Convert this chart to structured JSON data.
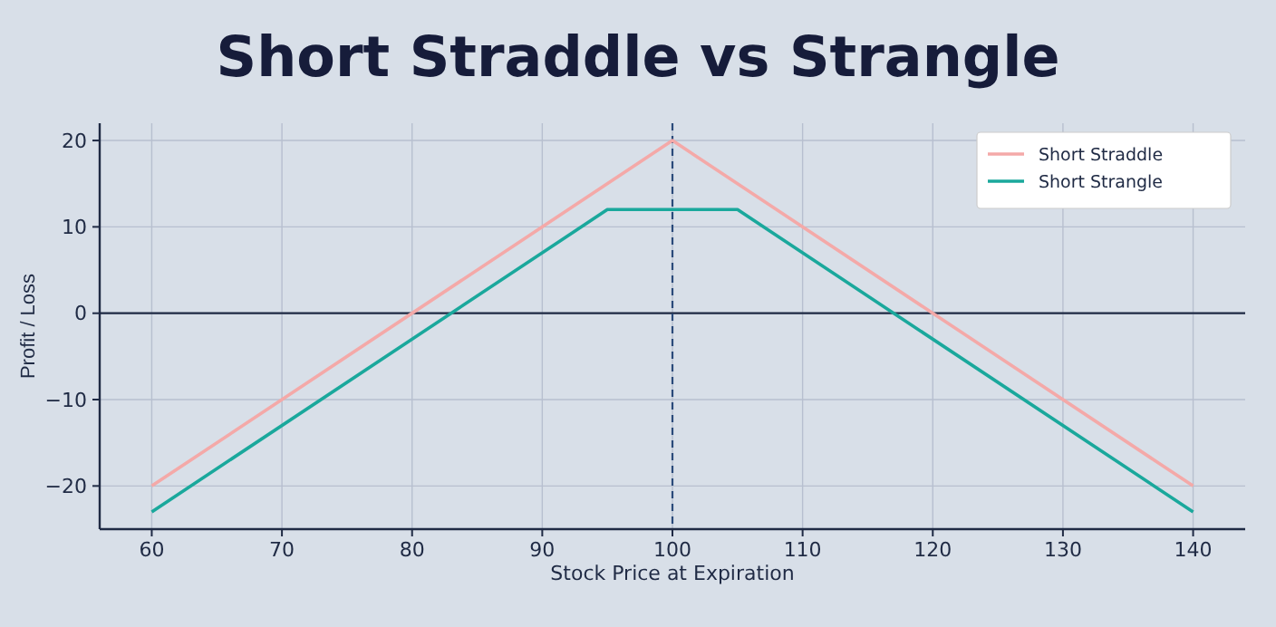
{
  "chart_data": {
    "type": "line",
    "title": "Short Straddle vs Strangle",
    "xlabel": "Stock Price at Expiration",
    "ylabel": "Profit / Loss",
    "series": [
      {
        "name": "Short Straddle",
        "color": "#f4a9a8",
        "x": [
          60,
          100,
          140
        ],
        "values": [
          -20,
          20,
          -20
        ]
      },
      {
        "name": "Short Strangle",
        "color": "#1aa89c",
        "x": [
          60,
          95,
          105,
          140
        ],
        "values": [
          -23,
          12,
          12,
          -23
        ]
      }
    ],
    "xlim": [
      56,
      144
    ],
    "xticks": [
      60,
      70,
      80,
      90,
      100,
      110,
      120,
      130,
      140
    ],
    "ylim": [
      -25,
      22
    ],
    "yticks": [
      {
        "value": -20,
        "label": "−20"
      },
      {
        "value": -10,
        "label": "−10"
      },
      0,
      10,
      20
    ],
    "ref_lines": [
      {
        "axis": "y",
        "value": 0,
        "color": "#1f2a44",
        "line_style": "solid"
      },
      {
        "axis": "x",
        "value": 100,
        "color": "#2a4a7a",
        "line_style": "dashed"
      }
    ],
    "grid": true,
    "legend": "top right",
    "marker": "none",
    "line_style": "solid"
  }
}
